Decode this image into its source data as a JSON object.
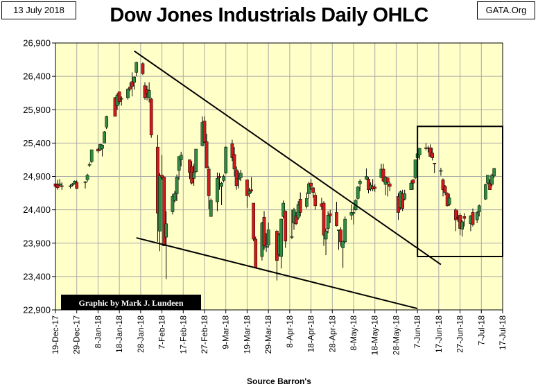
{
  "header": {
    "date": "13 July 2018",
    "source": "GATA.Org"
  },
  "chart_data": {
    "type": "ohlc",
    "title": "Dow Jones Industrials Daily OHLC",
    "xlabel": "Source Barron's",
    "ylabel": "",
    "credit": "Graphic by Mark J. Lundeen",
    "ylim": [
      22900,
      26900
    ],
    "yticks": [
      22900,
      23400,
      23900,
      24400,
      24900,
      25400,
      25900,
      26400,
      26900
    ],
    "ytick_labels": [
      "22,900",
      "23,400",
      "23,900",
      "24,400",
      "24,900",
      "25,400",
      "25,900",
      "26,400",
      "26,900"
    ],
    "xlim": [
      "2017-12-19",
      "2018-07-17"
    ],
    "xticks": [
      "2017-12-19",
      "2017-12-29",
      "2018-01-08",
      "2018-01-18",
      "2018-01-28",
      "2018-02-07",
      "2018-02-17",
      "2018-02-27",
      "2018-03-09",
      "2018-03-19",
      "2018-03-29",
      "2018-04-08",
      "2018-04-18",
      "2018-04-28",
      "2018-05-08",
      "2018-05-18",
      "2018-05-28",
      "2018-06-07",
      "2018-06-17",
      "2018-06-27",
      "2018-07-07",
      "2018-07-17"
    ],
    "xtick_labels": [
      "19-Dec-17",
      "29-Dec-17",
      "8-Jan-18",
      "18-Jan-18",
      "28-Jan-18",
      "7-Feb-18",
      "17-Feb-18",
      "27-Feb-18",
      "9-Mar-18",
      "19-Mar-18",
      "29-Mar-18",
      "8-Apr-18",
      "18-Apr-18",
      "28-Apr-18",
      "8-May-18",
      "18-May-18",
      "28-May-18",
      "7-Jun-18",
      "17-Jun-18",
      "27-Jun-18",
      "7-Jul-18",
      "17-Jul-18"
    ],
    "grid": true,
    "colors": {
      "plot_bg": "#FFFFC8",
      "up": "#2E8B40",
      "down": "#D11A1A",
      "grid": "#A9A9A9",
      "trendline": "#000000"
    },
    "trendlines": [
      {
        "x": [
          "2018-01-25",
          "2018-06-18"
        ],
        "y": [
          26780,
          23580
        ]
      },
      {
        "x": [
          "2018-01-26",
          "2018-06-07"
        ],
        "y": [
          23980,
          22920
        ]
      }
    ],
    "box": {
      "x": [
        "2018-06-07",
        "2018-07-17"
      ],
      "y": [
        23700,
        25650
      ]
    },
    "ohlc": [
      [
        "2017-12-19",
        24790,
        24880,
        24720,
        24750
      ],
      [
        "2017-12-20",
        24780,
        24850,
        24700,
        24730
      ],
      [
        "2017-12-21",
        24770,
        24860,
        24750,
        24790
      ],
      [
        "2017-12-22",
        24760,
        24810,
        24700,
        24750
      ],
      [
        "2017-12-26",
        24750,
        24780,
        24720,
        24760
      ],
      [
        "2017-12-27",
        24770,
        24800,
        24750,
        24790
      ],
      [
        "2017-12-28",
        24790,
        24840,
        24780,
        24830
      ],
      [
        "2017-12-29",
        24810,
        24840,
        24710,
        24720
      ],
      [
        "2018-01-02",
        24810,
        24830,
        24720,
        24820
      ],
      [
        "2018-01-03",
        24850,
        24940,
        24820,
        24920
      ],
      [
        "2018-01-04",
        25070,
        25110,
        25040,
        25080
      ],
      [
        "2018-01-05",
        25120,
        25300,
        25100,
        25300
      ],
      [
        "2018-01-08",
        25310,
        25330,
        25250,
        25280
      ],
      [
        "2018-01-09",
        25300,
        25390,
        25280,
        25380
      ],
      [
        "2018-01-10",
        25320,
        25380,
        25200,
        25370
      ],
      [
        "2018-01-11",
        25400,
        25580,
        25400,
        25570
      ],
      [
        "2018-01-12",
        25640,
        25810,
        25610,
        25800
      ],
      [
        "2018-01-16",
        26080,
        26090,
        25810,
        25800
      ],
      [
        "2018-01-17",
        25960,
        26150,
        25900,
        26120
      ],
      [
        "2018-01-18",
        26170,
        26170,
        25980,
        26020
      ],
      [
        "2018-01-19",
        26070,
        26100,
        25960,
        26070
      ],
      [
        "2018-01-22",
        26080,
        26220,
        26050,
        26210
      ],
      [
        "2018-01-23",
        26240,
        26310,
        26180,
        26210
      ],
      [
        "2018-01-24",
        26320,
        26460,
        26100,
        26250
      ],
      [
        "2018-01-25",
        26310,
        26400,
        26200,
        26390
      ],
      [
        "2018-01-26",
        26460,
        26620,
        26400,
        26610
      ],
      [
        "2018-01-29",
        26590,
        26610,
        26420,
        26440
      ],
      [
        "2018-01-30",
        26260,
        26310,
        26050,
        26080
      ],
      [
        "2018-01-31",
        26200,
        26260,
        26040,
        26150
      ],
      [
        "2018-02-01",
        26080,
        26310,
        26010,
        26190
      ],
      [
        "2018-02-02",
        26060,
        26080,
        25480,
        25520
      ],
      [
        "2018-02-05",
        25340,
        25520,
        23920,
        24350
      ],
      [
        "2018-02-06",
        24080,
        24950,
        23780,
        24910
      ],
      [
        "2018-02-07",
        24920,
        25220,
        24850,
        24890
      ],
      [
        "2018-02-08",
        24890,
        24900,
        23860,
        23860
      ],
      [
        "2018-02-09",
        23990,
        24380,
        23360,
        24190
      ],
      [
        "2018-02-12",
        24370,
        24640,
        24330,
        24600
      ],
      [
        "2018-02-13",
        24540,
        24680,
        24510,
        24640
      ],
      [
        "2018-02-14",
        24640,
        24930,
        24530,
        24890
      ],
      [
        "2018-02-15",
        24990,
        25200,
        24850,
        25200
      ],
      [
        "2018-02-16",
        25150,
        25270,
        25050,
        25220
      ],
      [
        "2018-02-20",
        25150,
        25130,
        24860,
        24960
      ],
      [
        "2018-02-21",
        25050,
        25130,
        24780,
        24800
      ],
      [
        "2018-02-22",
        24870,
        25090,
        24760,
        24960
      ],
      [
        "2018-02-23",
        24970,
        25310,
        24950,
        25310
      ],
      [
        "2018-02-26",
        25360,
        25800,
        25350,
        25710
      ],
      [
        "2018-02-27",
        25730,
        25800,
        25400,
        25410
      ],
      [
        "2018-02-28",
        25420,
        25540,
        25020,
        25030
      ],
      [
        "2018-03-01",
        25010,
        25050,
        24410,
        24610
      ],
      [
        "2018-03-02",
        24300,
        24570,
        24300,
        24540
      ],
      [
        "2018-03-05",
        24520,
        24960,
        24380,
        24870
      ],
      [
        "2018-03-06",
        24900,
        24950,
        24700,
        24880
      ],
      [
        "2018-03-07",
        24750,
        24820,
        24470,
        24800
      ],
      [
        "2018-03-08",
        24840,
        24930,
        24810,
        24900
      ],
      [
        "2018-03-09",
        24950,
        25350,
        24940,
        25340
      ],
      [
        "2018-03-12",
        25390,
        25450,
        25130,
        25180
      ],
      [
        "2018-03-13",
        25230,
        25340,
        24900,
        25010
      ],
      [
        "2018-03-14",
        25000,
        25050,
        24700,
        24760
      ],
      [
        "2018-03-15",
        24850,
        24980,
        24720,
        24870
      ],
      [
        "2018-03-16",
        24880,
        25000,
        24830,
        24950
      ],
      [
        "2018-03-19",
        24850,
        24850,
        24430,
        24610
      ],
      [
        "2018-03-20",
        24640,
        24730,
        24590,
        24680
      ],
      [
        "2018-03-21",
        24700,
        24890,
        24650,
        24680
      ],
      [
        "2018-03-22",
        24500,
        24500,
        23930,
        23960
      ],
      [
        "2018-03-23",
        23960,
        24000,
        23530,
        23530
      ],
      [
        "2018-03-26",
        23700,
        24220,
        23640,
        24200
      ],
      [
        "2018-03-27",
        24290,
        24380,
        23800,
        23860
      ],
      [
        "2018-03-28",
        23850,
        24050,
        23770,
        23850
      ],
      [
        "2018-03-29",
        23870,
        24210,
        23830,
        24100
      ],
      [
        "2018-04-02",
        24080,
        24100,
        23340,
        23640
      ],
      [
        "2018-04-03",
        23730,
        24050,
        23700,
        24030
      ],
      [
        "2018-04-04",
        23700,
        24270,
        23520,
        24260
      ],
      [
        "2018-04-05",
        24300,
        24540,
        24270,
        24500
      ],
      [
        "2018-04-06",
        24380,
        24390,
        23830,
        23930
      ],
      [
        "2018-04-09",
        24000,
        24400,
        23960,
        24000
      ],
      [
        "2018-04-10",
        24200,
        24430,
        24100,
        24400
      ],
      [
        "2018-04-11",
        24310,
        24370,
        24170,
        24190
      ],
      [
        "2018-04-12",
        24280,
        24530,
        24250,
        24480
      ],
      [
        "2018-04-13",
        24560,
        24660,
        24300,
        24360
      ],
      [
        "2018-04-16",
        24450,
        24660,
        24420,
        24570
      ],
      [
        "2018-04-17",
        24640,
        24820,
        24570,
        24790
      ],
      [
        "2018-04-18",
        24800,
        24860,
        24700,
        24750
      ],
      [
        "2018-04-19",
        24730,
        24740,
        24580,
        24660
      ],
      [
        "2018-04-20",
        24620,
        24660,
        24400,
        24460
      ],
      [
        "2018-04-23",
        24490,
        24580,
        24400,
        24450
      ],
      [
        "2018-04-24",
        24500,
        24530,
        23860,
        24020
      ],
      [
        "2018-04-25",
        23960,
        24120,
        23720,
        24080
      ],
      [
        "2018-04-26",
        24120,
        24380,
        24050,
        24320
      ],
      [
        "2018-04-27",
        24340,
        24400,
        24200,
        24310
      ],
      [
        "2018-04-30",
        24360,
        24520,
        24150,
        24160
      ],
      [
        "2018-05-01",
        24100,
        24100,
        23800,
        24100
      ],
      [
        "2018-05-02",
        24100,
        24140,
        23850,
        23920
      ],
      [
        "2018-05-03",
        23830,
        23900,
        23530,
        23930
      ],
      [
        "2018-05-04",
        23920,
        24300,
        23900,
        24260
      ],
      [
        "2018-05-07",
        24320,
        24480,
        24250,
        24360
      ],
      [
        "2018-05-08",
        24360,
        24450,
        24180,
        24360
      ],
      [
        "2018-05-09",
        24400,
        24560,
        24380,
        24540
      ],
      [
        "2018-05-10",
        24570,
        24760,
        24550,
        24740
      ],
      [
        "2018-05-11",
        24790,
        24860,
        24680,
        24830
      ],
      [
        "2018-05-14",
        24860,
        25020,
        24850,
        24900
      ],
      [
        "2018-05-15",
        24860,
        24890,
        24650,
        24700
      ],
      [
        "2018-05-16",
        24710,
        24810,
        24680,
        24770
      ],
      [
        "2018-05-17",
        24750,
        24860,
        24680,
        24710
      ],
      [
        "2018-05-18",
        24740,
        24780,
        24670,
        24720
      ],
      [
        "2018-05-21",
        24880,
        25090,
        24880,
        25010
      ],
      [
        "2018-05-22",
        25010,
        25090,
        24810,
        24830
      ],
      [
        "2018-05-23",
        24780,
        24900,
        24620,
        24890
      ],
      [
        "2018-05-24",
        24880,
        24880,
        24600,
        24810
      ],
      [
        "2018-05-25",
        24790,
        24820,
        24680,
        24750
      ],
      [
        "2018-05-29",
        24600,
        24650,
        24250,
        24360
      ],
      [
        "2018-05-30",
        24430,
        24690,
        24400,
        24670
      ],
      [
        "2018-05-31",
        24640,
        24700,
        24380,
        24420
      ],
      [
        "2018-06-01",
        24560,
        24700,
        24540,
        24640
      ],
      [
        "2018-06-04",
        24700,
        24840,
        24700,
        24800
      ],
      [
        "2018-06-05",
        24850,
        24860,
        24700,
        24800
      ],
      [
        "2018-06-06",
        24880,
        25150,
        24860,
        25150
      ],
      [
        "2018-06-07",
        25180,
        25330,
        25150,
        25240
      ],
      [
        "2018-06-08",
        25220,
        25330,
        25150,
        25320
      ],
      [
        "2018-06-11",
        25330,
        25400,
        25290,
        25320
      ],
      [
        "2018-06-12",
        25330,
        25360,
        25260,
        25320
      ],
      [
        "2018-06-13",
        25330,
        25380,
        25190,
        25200
      ],
      [
        "2018-06-14",
        25250,
        25330,
        25140,
        25180
      ],
      [
        "2018-06-15",
        25100,
        25100,
        24950,
        25090
      ],
      [
        "2018-06-18",
        24980,
        25030,
        24910,
        24990
      ],
      [
        "2018-06-19",
        24850,
        24870,
        24600,
        24700
      ],
      [
        "2018-06-20",
        24750,
        24770,
        24620,
        24660
      ],
      [
        "2018-06-21",
        24650,
        24660,
        24450,
        24460
      ],
      [
        "2018-06-22",
        24480,
        24640,
        24460,
        24580
      ],
      [
        "2018-06-25",
        24400,
        24420,
        24080,
        24250
      ],
      [
        "2018-06-26",
        24290,
        24390,
        24220,
        24280
      ],
      [
        "2018-06-27",
        24320,
        24350,
        24020,
        24120
      ],
      [
        "2018-06-28",
        24110,
        24250,
        24000,
        24220
      ],
      [
        "2018-06-29",
        24300,
        24350,
        24150,
        24270
      ],
      [
        "2018-07-02",
        24190,
        24320,
        24080,
        24310
      ],
      [
        "2018-07-03",
        24360,
        24420,
        24150,
        24180
      ],
      [
        "2018-07-05",
        24250,
        24380,
        24200,
        24360
      ],
      [
        "2018-07-06",
        24370,
        24480,
        24300,
        24460
      ],
      [
        "2018-07-09",
        24560,
        24790,
        24550,
        24780
      ],
      [
        "2018-07-10",
        24800,
        24920,
        24780,
        24920
      ],
      [
        "2018-07-11",
        24800,
        24860,
        24700,
        24700
      ],
      [
        "2018-07-12",
        24780,
        24940,
        24750,
        24920
      ],
      [
        "2018-07-13",
        24910,
        25030,
        24880,
        25020
      ]
    ]
  }
}
